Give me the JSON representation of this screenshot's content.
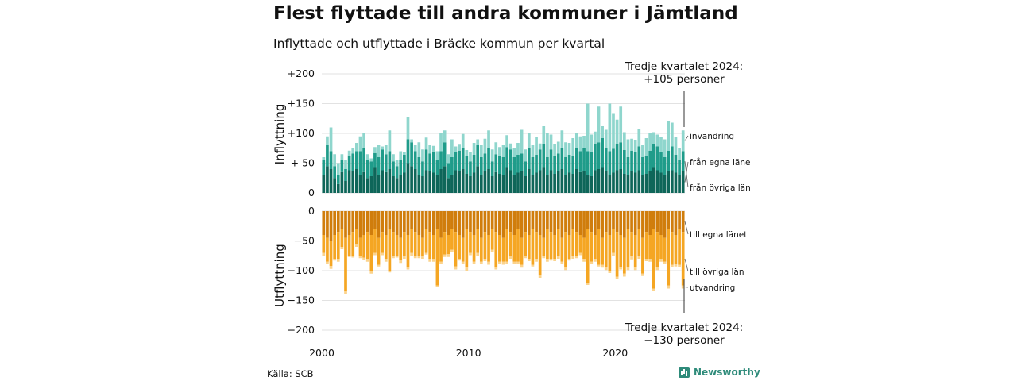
{
  "title": "Flest flyttade till andra kommuner i Jämtland",
  "subtitle": "Inflyttade och utflyttade i Bräcke kommun per kvartal",
  "source": "Källa: SCB",
  "brand": "Newsworthy",
  "colors": {
    "in_egna": "#0e6659",
    "in_ovriga": "#1f9c8a",
    "in_invandring": "#8fd6cd",
    "out_egna": "#d07d0c",
    "out_ovriga": "#f5a623",
    "out_utvandring": "#fbd38c",
    "grid": "#e2e2e2"
  },
  "chart_data": [
    {
      "type": "bar",
      "stacked": true,
      "ylabel": "Inflyttning",
      "ylim": [
        0,
        200
      ],
      "y_ticks": [
        "0",
        "+ 50",
        "+100",
        "+150",
        "+200"
      ],
      "x_ticks": [
        "2000",
        "2010",
        "2020"
      ],
      "x_range": [
        "2000 Q1",
        "2024 Q3"
      ],
      "annotation": [
        "Tredje kvartalet 2024:",
        "+105 personer"
      ],
      "series": [
        {
          "name": "från egna läne",
          "values": [
            30,
            45,
            40,
            25,
            15,
            35,
            20,
            38,
            36,
            40,
            30,
            35,
            25,
            28,
            42,
            30,
            38,
            35,
            40,
            28,
            25,
            30,
            34,
            50,
            45,
            40,
            30,
            28,
            38,
            36,
            34,
            30,
            40,
            45,
            25,
            30,
            38,
            36,
            40,
            32,
            28,
            34,
            45,
            30,
            36,
            40,
            28,
            35,
            32,
            30,
            42,
            38,
            30,
            34,
            36,
            28,
            40,
            30,
            34,
            38,
            42,
            30,
            38,
            32,
            36,
            40,
            30,
            34,
            32,
            40,
            35,
            36,
            30,
            28,
            38,
            40,
            42,
            36,
            30,
            34,
            38,
            40,
            32,
            30,
            36,
            34,
            38,
            30,
            32,
            36,
            42,
            38,
            34,
            30,
            36,
            38,
            34,
            30,
            36
          ]
        },
        {
          "name": "från övriga län",
          "values": [
            25,
            35,
            30,
            20,
            15,
            20,
            20,
            25,
            30,
            30,
            40,
            40,
            30,
            25,
            25,
            30,
            35,
            30,
            30,
            25,
            20,
            25,
            30,
            40,
            40,
            30,
            30,
            25,
            35,
            30,
            35,
            25,
            30,
            40,
            25,
            30,
            30,
            35,
            35,
            30,
            25,
            30,
            35,
            30,
            30,
            35,
            25,
            30,
            30,
            30,
            35,
            35,
            30,
            30,
            30,
            25,
            35,
            30,
            30,
            35,
            40,
            30,
            35,
            30,
            30,
            35,
            30,
            30,
            30,
            35,
            35,
            40,
            40,
            40,
            45,
            45,
            50,
            40,
            40,
            40,
            45,
            45,
            40,
            30,
            35,
            35,
            40,
            30,
            30,
            35,
            40,
            40,
            35,
            30,
            35,
            40,
            30,
            25,
            34
          ]
        },
        {
          "name": "invandring",
          "values": [
            5,
            15,
            40,
            20,
            20,
            10,
            15,
            8,
            10,
            14,
            25,
            25,
            10,
            5,
            10,
            20,
            5,
            15,
            35,
            12,
            10,
            15,
            5,
            37,
            5,
            10,
            25,
            20,
            20,
            14,
            10,
            15,
            30,
            20,
            15,
            30,
            10,
            10,
            24,
            10,
            15,
            20,
            10,
            20,
            25,
            30,
            20,
            20,
            15,
            20,
            20,
            10,
            15,
            20,
            40,
            20,
            25,
            20,
            30,
            10,
            30,
            40,
            25,
            20,
            20,
            30,
            25,
            20,
            30,
            25,
            25,
            20,
            80,
            30,
            20,
            60,
            20,
            30,
            80,
            60,
            40,
            60,
            30,
            30,
            20,
            20,
            30,
            20,
            30,
            30,
            20,
            20,
            25,
            30,
            50,
            40,
            30,
            20,
            35
          ]
        }
      ]
    },
    {
      "type": "bar",
      "stacked": true,
      "ylabel": "Utflyttning",
      "ylim": [
        -200,
        0
      ],
      "y_ticks": [
        "0",
        "−50",
        "−100",
        "−150",
        "−200"
      ],
      "x_ticks": [
        "2000",
        "2010",
        "2020"
      ],
      "x_range": [
        "2000 Q1",
        "2024 Q3"
      ],
      "annotation": [
        "Tredje kvartalet 2024:",
        "−130 personer"
      ],
      "series": [
        {
          "name": "till egna länet",
          "values": [
            -40,
            -45,
            -50,
            -40,
            -35,
            -30,
            -45,
            -40,
            -35,
            -30,
            -45,
            -40,
            -35,
            -40,
            -30,
            -45,
            -35,
            -40,
            -30,
            -35,
            -40,
            -45,
            -35,
            -40,
            -30,
            -35,
            -40,
            -45,
            -30,
            -35,
            -40,
            -30,
            -45,
            -35,
            -40,
            -30,
            -35,
            -40,
            -45,
            -30,
            -35,
            -40,
            -30,
            -45,
            -35,
            -40,
            -30,
            -35,
            -40,
            -45,
            -30,
            -35,
            -40,
            -30,
            -45,
            -35,
            -40,
            -30,
            -35,
            -40,
            -45,
            -30,
            -35,
            -40,
            -30,
            -45,
            -35,
            -40,
            -30,
            -35,
            -40,
            -45,
            -30,
            -35,
            -40,
            -30,
            -45,
            -35,
            -40,
            -30,
            -35,
            -40,
            -45,
            -30,
            -35,
            -40,
            -30,
            -45,
            -35,
            -40,
            -30,
            -35,
            -40,
            -45,
            -30,
            -35,
            -40,
            -30,
            -35
          ]
        },
        {
          "name": "till övriga län",
          "values": [
            -30,
            -40,
            -42,
            -40,
            -45,
            -30,
            -90,
            -35,
            -40,
            -25,
            -30,
            -38,
            -45,
            -60,
            -40,
            -45,
            -35,
            -40,
            -70,
            -40,
            -35,
            -38,
            -40,
            -55,
            -40,
            -40,
            -35,
            -30,
            -40,
            -45,
            -40,
            -95,
            -40,
            -38,
            -32,
            -35,
            -58,
            -40,
            -40,
            -65,
            -35,
            -45,
            -40,
            -40,
            -45,
            -45,
            -35,
            -60,
            -45,
            -40,
            -55,
            -40,
            -45,
            -55,
            -45,
            -40,
            -40,
            -60,
            -45,
            -68,
            -30,
            -50,
            -45,
            -40,
            -45,
            -40,
            -60,
            -40,
            -45,
            -40,
            -30,
            -35,
            -90,
            -50,
            -40,
            -60,
            -45,
            -60,
            -60,
            -40,
            -75,
            -55,
            -60,
            -65,
            -40,
            -55,
            -45,
            -60,
            -45,
            -40,
            -100,
            -60,
            -40,
            -40,
            -95,
            -55,
            -48,
            -60,
            -90
          ]
        },
        {
          "name": "utvandring",
          "values": [
            -5,
            -4,
            -5,
            -3,
            -5,
            -4,
            -4,
            -2,
            -3,
            -5,
            -4,
            -4,
            -5,
            -5,
            -4,
            -3,
            -4,
            -5,
            -3,
            -4,
            -3,
            -4,
            -5,
            -3,
            -5,
            -4,
            -4,
            -5,
            -3,
            -5,
            -5,
            -3,
            -4,
            -4,
            -5,
            -4,
            -5,
            -3,
            -4,
            -5,
            -4,
            -3,
            -5,
            -4,
            -4,
            -5,
            -4,
            -3,
            -4,
            -5,
            -4,
            -5,
            -4,
            -3,
            -5,
            -4,
            -4,
            -3,
            -5,
            -4,
            -4,
            -5,
            -3,
            -4,
            -5,
            -4,
            -4,
            -3,
            -5,
            -4,
            -4,
            -5,
            -4,
            -4,
            -5,
            -3,
            -5,
            -4,
            -4,
            -5,
            -4,
            -3,
            -5,
            -4,
            -6,
            -4,
            -5,
            -4,
            -4,
            -5,
            -4,
            -4,
            -5,
            -3,
            -5,
            -4,
            -5,
            -4,
            -5
          ]
        }
      ]
    }
  ]
}
